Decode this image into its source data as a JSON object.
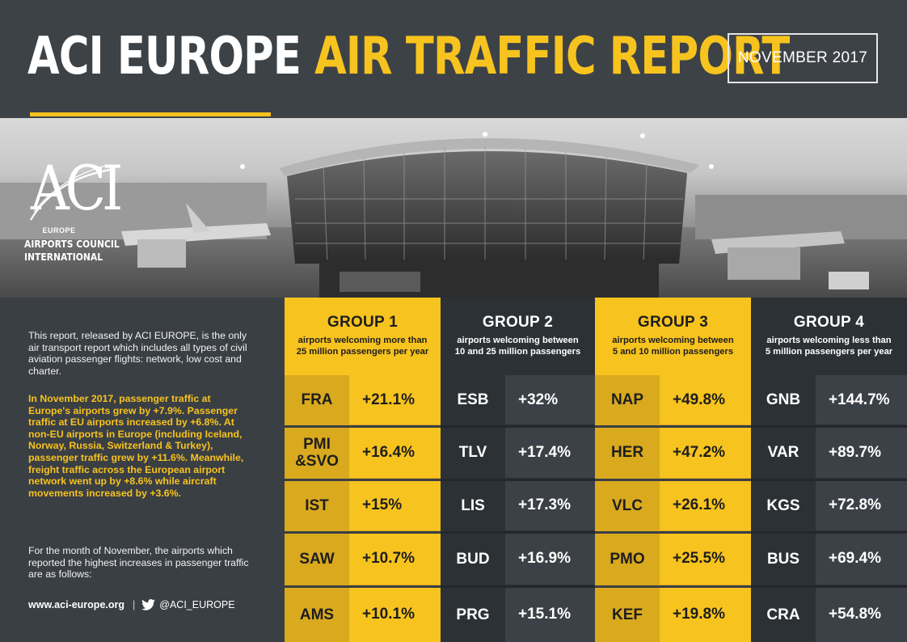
{
  "header": {
    "title_white": "ACI EUROPE",
    "title_yellow": "AIR TRAFFIC REPORT",
    "date": "NOVEMBER 2017"
  },
  "logo": {
    "mark": "ACI",
    "region": "EUROPE",
    "line1": "AIRPORTS COUNCIL",
    "line2": "INTERNATIONAL"
  },
  "intro": {
    "p1": "This report, released by ACI EUROPE, is the only air transport report which includes all types of civil aviation passenger flights: network, low cost and charter.",
    "p2": "In November 2017, passenger traffic at Europe's airports grew by +7.9%. Passenger traffic at EU airports increased by +6.8%. At non-EU airports in Europe (including Iceland, Norway, Russia, Switzerland & Turkey), passenger traffic grew by +11.6%. Meanwhile, freight traffic across the European airport network went up by +8.6% while aircraft movements increased by +3.6%.",
    "p3": "For the month of November, the airports which reported the highest increases in passenger traffic are as follows:"
  },
  "footer": {
    "website": "www.aci-europe.org",
    "separator": "|",
    "twitter": "@ACI_EUROPE"
  },
  "groups": [
    {
      "title": "GROUP 1",
      "desc1": "airports welcoming more than",
      "desc2": "25 million passengers per year",
      "style": "yellow",
      "rows": [
        {
          "code": "FRA",
          "value": "+21.1%"
        },
        {
          "code": "PMI &SVO",
          "value": "+16.4%"
        },
        {
          "code": "IST",
          "value": "+15%"
        },
        {
          "code": "SAW",
          "value": "+10.7%"
        },
        {
          "code": "AMS",
          "value": "+10.1%"
        }
      ]
    },
    {
      "title": "GROUP 2",
      "desc1": "airports welcoming between",
      "desc2": "10 and 25 million passengers",
      "style": "dark",
      "rows": [
        {
          "code": "ESB",
          "value": "+32%"
        },
        {
          "code": "TLV",
          "value": "+17.4%"
        },
        {
          "code": "LIS",
          "value": "+17.3%"
        },
        {
          "code": "BUD",
          "value": "+16.9%"
        },
        {
          "code": "PRG",
          "value": "+15.1%"
        }
      ]
    },
    {
      "title": "GROUP 3",
      "desc1": "airports welcoming between",
      "desc2": "5 and 10 million passengers",
      "style": "yellow",
      "rows": [
        {
          "code": "NAP",
          "value": "+49.8%"
        },
        {
          "code": "HER",
          "value": "+47.2%"
        },
        {
          "code": "VLC",
          "value": "+26.1%"
        },
        {
          "code": "PMO",
          "value": "+25.5%"
        },
        {
          "code": "KEF",
          "value": "+19.8%"
        }
      ]
    },
    {
      "title": "GROUP 4",
      "desc1": "airports welcoming less than",
      "desc2": "5 million passengers per year",
      "style": "dark",
      "rows": [
        {
          "code": "GNB",
          "value": "+144.7%"
        },
        {
          "code": "VAR",
          "value": "+89.7%"
        },
        {
          "code": "KGS",
          "value": "+72.8%"
        },
        {
          "code": "BUS",
          "value": "+69.4%"
        },
        {
          "code": "CRA",
          "value": "+54.8%"
        }
      ]
    }
  ],
  "colors": {
    "accent": "#f7c31e",
    "background": "#3a3f44",
    "dark_column": "#2c3135"
  },
  "icons": {
    "twitter": "twitter-bird-icon"
  }
}
